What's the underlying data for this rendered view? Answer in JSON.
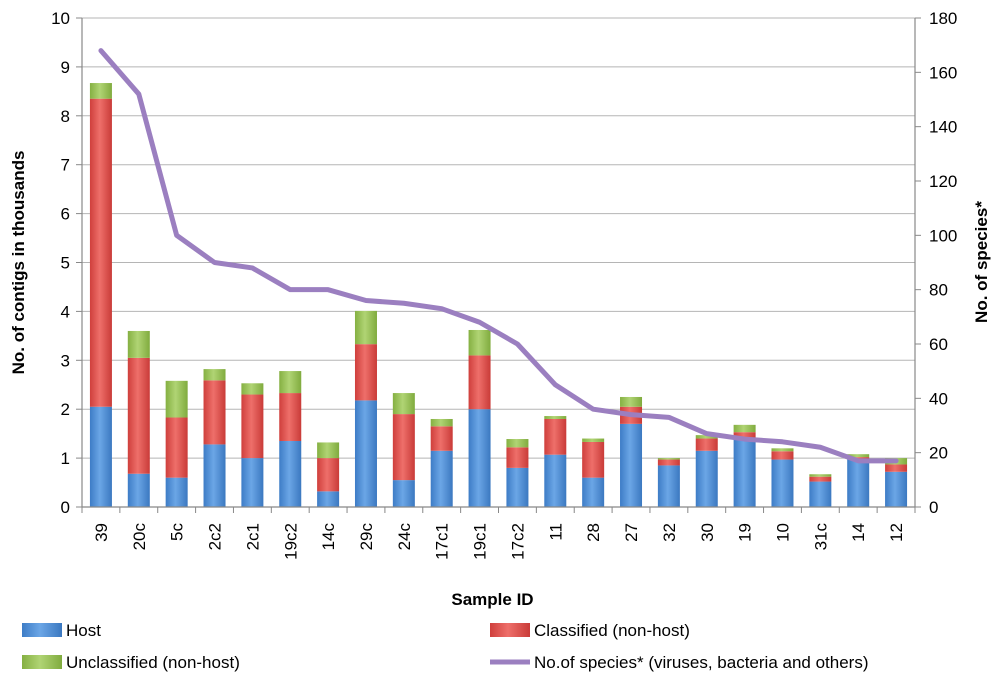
{
  "chart_data": {
    "type": "bar",
    "stacked": true,
    "categories": [
      "39",
      "20c",
      "5c",
      "2c2",
      "2c1",
      "19c2",
      "14c",
      "29c",
      "24c",
      "17c1",
      "19c1",
      "17c2",
      "11",
      "28",
      "27",
      "32",
      "30",
      "19",
      "10",
      "31c",
      "14",
      "12"
    ],
    "series": [
      {
        "name": "Host",
        "type": "bar",
        "axis": "left",
        "color": "#4f8fd6",
        "values": [
          2.05,
          0.68,
          0.6,
          1.28,
          1.0,
          1.35,
          0.32,
          2.18,
          0.55,
          1.15,
          2.0,
          0.8,
          1.07,
          0.6,
          1.7,
          0.85,
          1.15,
          1.38,
          0.97,
          0.52,
          0.98,
          0.72
        ]
      },
      {
        "name": "Classified (non-host)",
        "type": "bar",
        "axis": "left",
        "color": "#e0534f",
        "values": [
          6.3,
          2.37,
          1.23,
          1.31,
          1.3,
          0.98,
          0.68,
          1.15,
          1.35,
          0.5,
          1.1,
          0.42,
          0.73,
          0.73,
          0.35,
          0.12,
          0.25,
          0.15,
          0.17,
          0.1,
          0.04,
          0.15
        ]
      },
      {
        "name": "Unclassified (non-host)",
        "type": "bar",
        "axis": "left",
        "color": "#97c256",
        "values": [
          0.32,
          0.55,
          0.75,
          0.23,
          0.23,
          0.45,
          0.32,
          0.68,
          0.43,
          0.15,
          0.52,
          0.17,
          0.06,
          0.07,
          0.2,
          0.03,
          0.07,
          0.15,
          0.06,
          0.05,
          0.06,
          0.13
        ]
      },
      {
        "name": "No.of species* (viruses, bacteria and others)",
        "type": "line",
        "axis": "right",
        "color": "#9b7fc0",
        "values": [
          168,
          152,
          100,
          90,
          88,
          80,
          80,
          76,
          75,
          73,
          68,
          60,
          45,
          36,
          34,
          33,
          27,
          25,
          24,
          22,
          17,
          17
        ]
      }
    ],
    "xlabel": "Sample ID",
    "ylabel": "No. of contigs in thousands",
    "y2label": "No. of species*",
    "ylim": [
      0,
      10
    ],
    "yticks": [
      "0",
      "1",
      "2",
      "3",
      "4",
      "5",
      "6",
      "7",
      "8",
      "9",
      "10"
    ],
    "y2lim": [
      0,
      180
    ],
    "y2ticks": [
      "0",
      "20",
      "40",
      "60",
      "80",
      "100",
      "120",
      "140",
      "160",
      "180"
    ],
    "grid": true,
    "legend_position": "bottom",
    "legend": [
      {
        "label": "Host",
        "kind": "box",
        "color": "#4f8fd6"
      },
      {
        "label": "Classified (non-host)",
        "kind": "box",
        "color": "#e0534f"
      },
      {
        "label": "Unclassified (non-host)",
        "kind": "box",
        "color": "#97c256"
      },
      {
        "label": "No.of species* (viruses, bacteria and others)",
        "kind": "line",
        "color": "#9b7fc0"
      }
    ]
  }
}
